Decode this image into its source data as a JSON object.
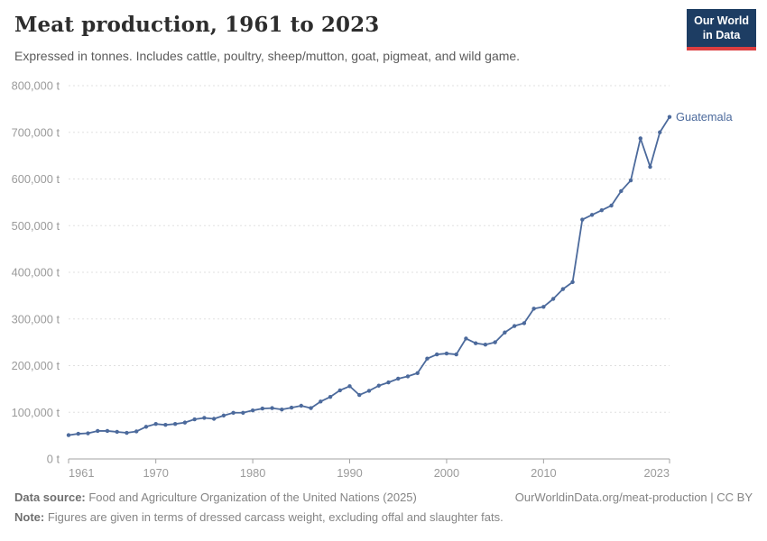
{
  "header": {
    "title": "Meat production, 1961 to 2023",
    "subtitle": "Expressed in tonnes. Includes cattle, poultry, sheep/mutton, goat, pigmeat, and wild game.",
    "logo": {
      "line1": "Our World",
      "line2": "in Data",
      "bg_color": "#1d3d63",
      "accent_color": "#dc3e40"
    }
  },
  "chart_data": {
    "type": "line",
    "title": "Meat production, 1961 to 2023",
    "unit": "tonnes",
    "grid": "horizontal dashed",
    "legend_position": "end-of-line label",
    "xlim": [
      1961,
      2023
    ],
    "ylim": [
      0,
      800000
    ],
    "x_ticks": {
      "values": [
        1961,
        1970,
        1980,
        1990,
        2000,
        2010,
        2023
      ],
      "labels": [
        "1961",
        "1970",
        "1980",
        "1990",
        "2000",
        "2010",
        "2023"
      ]
    },
    "y_ticks": {
      "values": [
        0,
        100000,
        200000,
        300000,
        400000,
        500000,
        600000,
        700000,
        800000
      ],
      "labels": [
        "0 t",
        "100,000 t",
        "200,000 t",
        "300,000 t",
        "400,000 t",
        "500,000 t",
        "600,000 t",
        "700,000 t",
        "800,000 t"
      ]
    },
    "x": [
      1961,
      1962,
      1963,
      1964,
      1965,
      1966,
      1967,
      1968,
      1969,
      1970,
      1971,
      1972,
      1973,
      1974,
      1975,
      1976,
      1977,
      1978,
      1979,
      1980,
      1981,
      1982,
      1983,
      1984,
      1985,
      1986,
      1987,
      1988,
      1989,
      1990,
      1991,
      1992,
      1993,
      1994,
      1995,
      1996,
      1997,
      1998,
      1999,
      2000,
      2001,
      2002,
      2003,
      2004,
      2005,
      2006,
      2007,
      2008,
      2009,
      2010,
      2011,
      2012,
      2013,
      2014,
      2015,
      2016,
      2017,
      2018,
      2019,
      2020,
      2021,
      2022,
      2023
    ],
    "series": [
      {
        "name": "Guatemala",
        "color": "#4C6A9C",
        "values": [
          51000,
          54000,
          55000,
          60000,
          60000,
          58000,
          56000,
          59000,
          69000,
          75000,
          73000,
          75000,
          78000,
          85000,
          88000,
          86000,
          93000,
          99000,
          99000,
          104000,
          108000,
          109000,
          106000,
          110000,
          114000,
          109000,
          123000,
          133000,
          147000,
          156000,
          137000,
          146000,
          157000,
          164000,
          172000,
          177000,
          184000,
          215000,
          224000,
          226000,
          224000,
          258000,
          248000,
          245000,
          250000,
          271000,
          285000,
          291000,
          322000,
          326000,
          343000,
          364000,
          379000,
          513000,
          523000,
          533000,
          543000,
          574000,
          597000,
          687000,
          626000,
          700000,
          733000
        ]
      }
    ],
    "colors": {
      "gridline": "#e0e0e0",
      "axis": "#a3a3a3",
      "tick_label": "#9b9b9b"
    }
  },
  "footer": {
    "source_label": "Data source:",
    "source_text": " Food and Agriculture Organization of the United Nations (2025)",
    "link_text": "OurWorldinData.org/meat-production | CC BY",
    "note_label": "Note:",
    "note_text": " Figures are given in terms of dressed carcass weight, excluding offal and slaughter fats."
  }
}
